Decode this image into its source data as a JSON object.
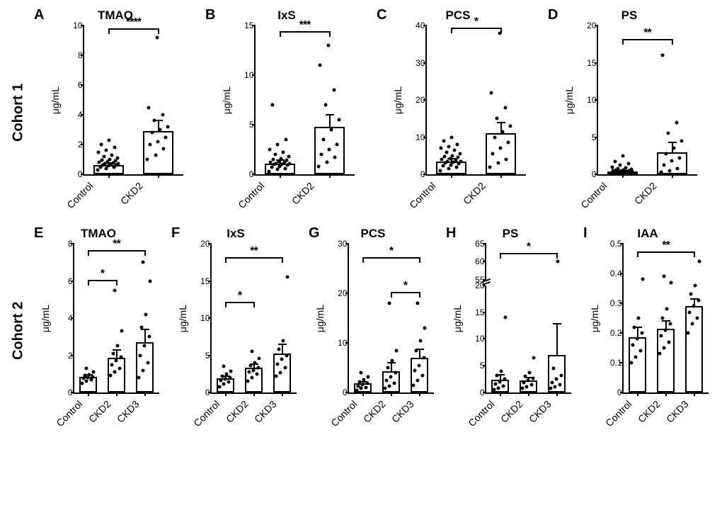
{
  "rows": [
    {
      "label": "Cohort 1",
      "panels": [
        {
          "letter": "A",
          "title": "TMAO",
          "ylabel": "μg/mL",
          "ymax": 10,
          "ystep": 2,
          "groups": [
            "Control",
            "CKD2"
          ],
          "bars": [
            {
              "mean": 0.6,
              "err": 0.15,
              "points": [
                0.3,
                0.4,
                0.5,
                0.5,
                0.55,
                0.6,
                0.6,
                0.65,
                0.7,
                0.7,
                0.75,
                0.8,
                0.85,
                0.9,
                0.95,
                1.0,
                1.1,
                1.2,
                1.3,
                1.5,
                1.6,
                1.8,
                2.0,
                2.3
              ]
            },
            {
              "mean": 2.9,
              "err": 0.7,
              "points": [
                1.0,
                1.3,
                1.7,
                2.0,
                2.2,
                2.5,
                2.8,
                3.0,
                3.2,
                3.6,
                4.0,
                4.5,
                9.2
              ]
            }
          ],
          "sig": [
            {
              "from": 0,
              "to": 1,
              "label": "****",
              "y": 9.7
            }
          ]
        },
        {
          "letter": "B",
          "title": "IxS",
          "ylabel": "μg/mL",
          "ymax": 15,
          "ystep": 5,
          "groups": [
            "Control",
            "CKD2"
          ],
          "bars": [
            {
              "mean": 1.1,
              "err": 0.3,
              "points": [
                0.3,
                0.5,
                0.6,
                0.7,
                0.8,
                0.9,
                1.0,
                1.0,
                1.1,
                1.1,
                1.2,
                1.2,
                1.3,
                1.4,
                1.5,
                1.6,
                1.8,
                2.0,
                2.2,
                2.5,
                3.0,
                3.5,
                7.0
              ]
            },
            {
              "mean": 4.8,
              "err": 1.2,
              "points": [
                0.8,
                1.2,
                1.7,
                2.0,
                2.5,
                3.0,
                3.5,
                4.5,
                5.5,
                7.0,
                8.5,
                11.0,
                13.0
              ]
            }
          ],
          "sig": [
            {
              "from": 0,
              "to": 1,
              "label": "***",
              "y": 14.3
            }
          ]
        },
        {
          "letter": "C",
          "title": "PCS",
          "ylabel": "μg/mL",
          "ymax": 40,
          "ystep": 10,
          "groups": [
            "Control",
            "CKD2"
          ],
          "bars": [
            {
              "mean": 3.5,
              "err": 0.6,
              "points": [
                1.0,
                1.5,
                2.0,
                2.2,
                2.5,
                2.8,
                3.0,
                3.2,
                3.5,
                3.5,
                3.8,
                4.0,
                4.2,
                4.5,
                4.8,
                5.0,
                5.5,
                6.0,
                6.5,
                7.0,
                7.5,
                8.0,
                9.0,
                10.0
              ]
            },
            {
              "mean": 11.0,
              "err": 3.0,
              "points": [
                2.0,
                3.0,
                4.0,
                5.5,
                7.0,
                8.5,
                10.0,
                11.5,
                13.0,
                15.0,
                18.0,
                22.0,
                38.0
              ]
            }
          ],
          "sig": [
            {
              "from": 0,
              "to": 1,
              "label": "*",
              "y": 39.0
            }
          ]
        },
        {
          "letter": "D",
          "title": "PS",
          "ylabel": "μg/mL",
          "ymax": 20,
          "ystep": 5,
          "groups": [
            "Control",
            "CKD2"
          ],
          "bars": [
            {
              "mean": 0.35,
              "err": 0.1,
              "points": [
                0.1,
                0.15,
                0.2,
                0.2,
                0.25,
                0.3,
                0.3,
                0.35,
                0.35,
                0.4,
                0.4,
                0.45,
                0.5,
                0.5,
                0.55,
                0.6,
                0.7,
                0.8,
                0.9,
                1.0,
                1.2,
                1.4,
                1.7,
                2.5
              ]
            },
            {
              "mean": 3.0,
              "err": 1.3,
              "points": [
                0.3,
                0.5,
                0.8,
                1.2,
                1.8,
                2.2,
                2.8,
                3.5,
                4.5,
                5.5,
                7.0,
                16.0
              ]
            }
          ],
          "sig": [
            {
              "from": 0,
              "to": 1,
              "label": "**",
              "y": 18.0
            }
          ]
        }
      ]
    },
    {
      "label": "Cohort 2",
      "panels": [
        {
          "letter": "E",
          "title": "TMAO",
          "ylabel": "μg/mL",
          "ymax": 8,
          "ystep": 2,
          "groups": [
            "Control",
            "CKD2",
            "CKD3"
          ],
          "bars": [
            {
              "mean": 0.85,
              "err": 0.1,
              "points": [
                0.5,
                0.6,
                0.7,
                0.75,
                0.8,
                0.85,
                0.9,
                0.95,
                1.1,
                1.3
              ]
            },
            {
              "mean": 1.85,
              "err": 0.45,
              "points": [
                0.9,
                1.1,
                1.3,
                1.5,
                1.7,
                1.9,
                2.1,
                2.5,
                3.3,
                5.5
              ]
            },
            {
              "mean": 2.7,
              "err": 0.7,
              "points": [
                0.8,
                1.2,
                1.6,
                2.0,
                2.5,
                3.0,
                3.5,
                4.2,
                6.0,
                7.0
              ]
            }
          ],
          "sig": [
            {
              "from": 0,
              "to": 1,
              "label": "*",
              "y": 6.0
            },
            {
              "from": 0,
              "to": 2,
              "label": "**",
              "y": 7.6
            }
          ]
        },
        {
          "letter": "F",
          "title": "IxS",
          "ylabel": "μg/mL",
          "ymax": 20,
          "ystep": 5,
          "groups": [
            "Control",
            "CKD2",
            "CKD3"
          ],
          "bars": [
            {
              "mean": 1.9,
              "err": 0.3,
              "points": [
                0.8,
                1.1,
                1.4,
                1.6,
                1.8,
                2.0,
                2.2,
                2.5,
                2.9,
                3.5
              ]
            },
            {
              "mean": 3.3,
              "err": 0.5,
              "points": [
                1.5,
                2.0,
                2.5,
                2.8,
                3.0,
                3.3,
                3.6,
                4.0,
                4.6,
                5.5
              ]
            },
            {
              "mean": 5.2,
              "err": 1.3,
              "points": [
                2.2,
                2.7,
                3.3,
                3.8,
                4.5,
                5.0,
                5.8,
                7.0,
                15.5
              ]
            }
          ],
          "sig": [
            {
              "from": 0,
              "to": 1,
              "label": "*",
              "y": 12.0
            },
            {
              "from": 0,
              "to": 2,
              "label": "**",
              "y": 18.0
            }
          ]
        },
        {
          "letter": "G",
          "title": "PCS",
          "ylabel": "μg/mL",
          "ymax": 30,
          "ystep": 10,
          "groups": [
            "Control",
            "CKD2",
            "CKD3"
          ],
          "bars": [
            {
              "mean": 1.8,
              "err": 0.4,
              "points": [
                0.5,
                0.8,
                1.0,
                1.3,
                1.6,
                1.9,
                2.2,
                2.6,
                3.2,
                4.0
              ]
            },
            {
              "mean": 4.3,
              "err": 1.7,
              "points": [
                0.8,
                1.3,
                1.8,
                2.5,
                3.2,
                4.0,
                5.0,
                6.5,
                8.5,
                18.0
              ]
            },
            {
              "mean": 7.0,
              "err": 1.7,
              "points": [
                1.5,
                2.5,
                3.5,
                4.5,
                5.5,
                7.0,
                8.5,
                10.5,
                13.0,
                18.0
              ]
            }
          ],
          "sig": [
            {
              "from": 1,
              "to": 2,
              "label": "*",
              "y": 20.0
            },
            {
              "from": 0,
              "to": 2,
              "label": "*",
              "y": 27.0
            }
          ]
        },
        {
          "letter": "H",
          "title": "PS",
          "ylabel": "μg/mL",
          "ymax": 65,
          "ystep": 5,
          "break": {
            "low": 20,
            "high": 55
          },
          "groups": [
            "Control",
            "CKD2",
            "CKD3"
          ],
          "bars": [
            {
              "mean": 2.4,
              "err": 0.9,
              "points": [
                0.5,
                0.8,
                1.2,
                1.6,
                2.0,
                2.5,
                3.2,
                4.0,
                14.0
              ]
            },
            {
              "mean": 2.2,
              "err": 0.6,
              "points": [
                0.8,
                1.1,
                1.5,
                1.8,
                2.2,
                2.6,
                3.0,
                3.7,
                6.5
              ]
            },
            {
              "mean": 7.0,
              "err": 5.8,
              "points": [
                0.8,
                1.1,
                1.5,
                1.9,
                2.5,
                3.2,
                4.5,
                60.0
              ]
            }
          ],
          "sig": [
            {
              "from": 0,
              "to": 2,
              "label": "*",
              "y": 62.0
            }
          ]
        },
        {
          "letter": "I",
          "title": "IAA",
          "ylabel": "μg/mL",
          "ymax": 0.5,
          "ystep": 0.1,
          "groups": [
            "Control",
            "CKD2",
            "CKD3"
          ],
          "bars": [
            {
              "mean": 0.185,
              "err": 0.035,
              "points": [
                0.1,
                0.12,
                0.14,
                0.16,
                0.18,
                0.2,
                0.22,
                0.25,
                0.38
              ]
            },
            {
              "mean": 0.215,
              "err": 0.025,
              "points": [
                0.13,
                0.15,
                0.17,
                0.19,
                0.21,
                0.23,
                0.25,
                0.28,
                0.37,
                0.39
              ]
            },
            {
              "mean": 0.29,
              "err": 0.025,
              "points": [
                0.2,
                0.23,
                0.25,
                0.27,
                0.29,
                0.31,
                0.33,
                0.36,
                0.44
              ]
            }
          ],
          "sig": [
            {
              "from": 0,
              "to": 2,
              "label": "**",
              "y": 0.47
            }
          ]
        }
      ]
    }
  ],
  "style": {
    "bar_color": "transparent",
    "stroke": "#000000",
    "point_color": "#000000",
    "bg": "#ffffff",
    "title_fontsize": 17,
    "letter_fontsize": 20,
    "tick_fontsize": 12,
    "label_fontsize": 14
  }
}
